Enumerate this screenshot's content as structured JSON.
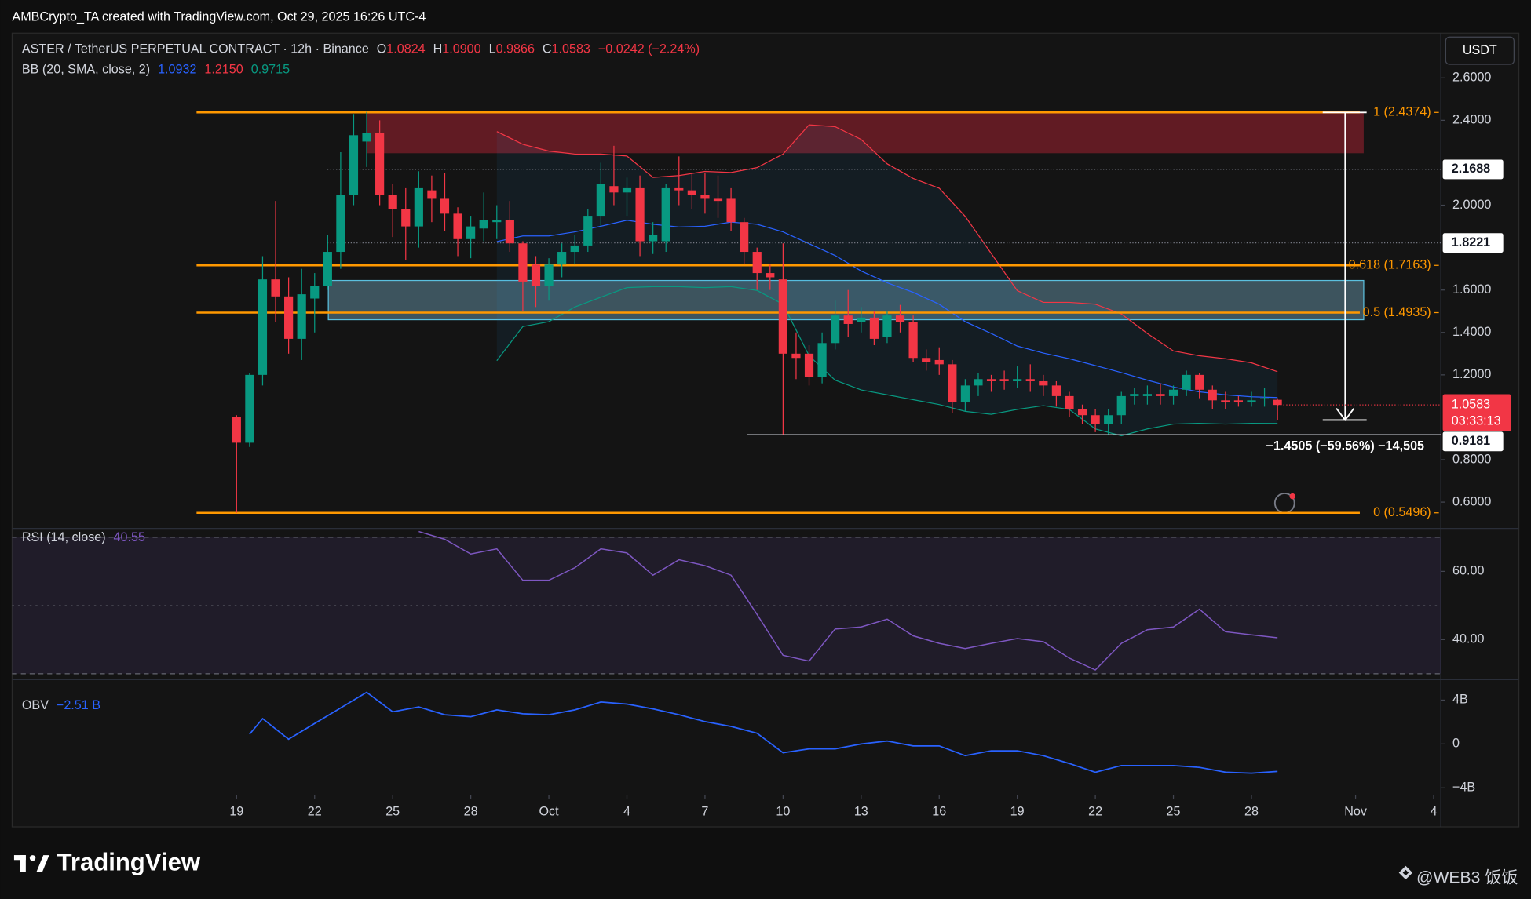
{
  "header": {
    "credit": "AMBCrypto_TA created with TradingView.com, Oct 29, 2025 16:26 UTC-4"
  },
  "currency": "USDT",
  "chart_data": [
    {
      "type": "candlestick",
      "title": "ASTER / TetherUS PERPETUAL CONTRACT · 12h · Binance",
      "ohlc_legend": [
        {
          "label": "O",
          "value": "1.0824"
        },
        {
          "label": "H",
          "value": "1.0900"
        },
        {
          "label": "L",
          "value": "0.9866"
        },
        {
          "label": "C",
          "value": "1.0583"
        }
      ],
      "change": "−0.0242 (−2.24%)",
      "up_color": "#089981",
      "down_color": "#f23645",
      "open": [
        1.0,
        0.88,
        1.2,
        1.65,
        1.57,
        1.37,
        1.56,
        1.62,
        1.78,
        2.05,
        2.3,
        2.34,
        2.05,
        1.98,
        1.9,
        2.07,
        2.03,
        1.96,
        1.84,
        1.89,
        1.92,
        1.93,
        1.82,
        1.72,
        1.62,
        1.72,
        1.78,
        1.81,
        1.95,
        2.09,
        2.06,
        2.08,
        1.83,
        1.83,
        2.08,
        2.07,
        2.05,
        2.03,
        2.03,
        1.92,
        1.78,
        1.68,
        1.65,
        1.3,
        1.3,
        1.19,
        1.35,
        1.48,
        1.45,
        1.47,
        1.38,
        1.48,
        1.45,
        1.28,
        1.27,
        1.25,
        1.07,
        1.15,
        1.18,
        1.18,
        1.17,
        1.18,
        1.17,
        1.15,
        1.1,
        1.04,
        1.01,
        0.97,
        1.01,
        1.1,
        1.1,
        1.11,
        1.1,
        1.13,
        1.2,
        1.13,
        1.08,
        1.08,
        1.07,
        1.09,
        1.0824
      ],
      "high": [
        1.01,
        1.21,
        1.76,
        2.02,
        1.66,
        1.7,
        1.68,
        1.86,
        2.25,
        2.43,
        2.44,
        2.4,
        2.1,
        2.08,
        2.16,
        2.14,
        2.15,
        1.99,
        1.95,
        2.06,
        2.0,
        2.02,
        1.83,
        1.76,
        1.75,
        1.82,
        1.86,
        1.98,
        2.2,
        2.28,
        2.13,
        2.14,
        1.92,
        2.1,
        2.23,
        2.15,
        2.15,
        2.14,
        2.08,
        1.94,
        1.8,
        1.72,
        1.82,
        1.4,
        1.34,
        1.4,
        1.55,
        1.6,
        1.52,
        1.5,
        1.5,
        1.53,
        1.48,
        1.32,
        1.33,
        1.27,
        1.18,
        1.21,
        1.2,
        1.22,
        1.24,
        1.25,
        1.2,
        1.17,
        1.12,
        1.06,
        1.04,
        1.04,
        1.12,
        1.14,
        1.15,
        1.16,
        1.15,
        1.22,
        1.21,
        1.15,
        1.12,
        1.1,
        1.12,
        1.14,
        1.09
      ],
      "low": [
        0.55,
        0.86,
        1.15,
        1.45,
        1.3,
        1.27,
        1.4,
        1.6,
        1.7,
        2.0,
        2.18,
        2.0,
        1.85,
        1.74,
        1.8,
        1.92,
        1.88,
        1.76,
        1.75,
        1.83,
        1.84,
        1.78,
        1.5,
        1.52,
        1.55,
        1.66,
        1.72,
        1.78,
        1.9,
        2.0,
        1.95,
        1.76,
        1.77,
        1.78,
        2.0,
        1.98,
        1.96,
        1.94,
        1.88,
        1.72,
        1.6,
        1.6,
        0.92,
        1.18,
        1.15,
        1.16,
        1.32,
        1.38,
        1.4,
        1.34,
        1.35,
        1.4,
        1.26,
        1.22,
        1.2,
        1.02,
        1.03,
        1.1,
        1.12,
        1.13,
        1.14,
        1.12,
        1.1,
        1.05,
        1.0,
        0.97,
        0.93,
        0.92,
        0.97,
        1.06,
        1.06,
        1.06,
        1.06,
        1.1,
        1.09,
        1.04,
        1.04,
        1.05,
        1.05,
        1.05,
        0.9866
      ],
      "close": [
        0.88,
        1.2,
        1.65,
        1.57,
        1.37,
        1.58,
        1.62,
        1.78,
        2.05,
        2.33,
        2.34,
        2.05,
        1.98,
        1.9,
        2.08,
        2.03,
        1.96,
        1.84,
        1.9,
        1.93,
        1.93,
        1.82,
        1.64,
        1.62,
        1.72,
        1.78,
        1.81,
        1.95,
        2.1,
        2.06,
        2.08,
        1.83,
        1.86,
        2.08,
        2.07,
        2.05,
        2.03,
        2.02,
        1.92,
        1.78,
        1.68,
        1.66,
        1.3,
        1.28,
        1.19,
        1.35,
        1.48,
        1.44,
        1.47,
        1.37,
        1.48,
        1.45,
        1.28,
        1.26,
        1.25,
        1.07,
        1.15,
        1.18,
        1.17,
        1.17,
        1.18,
        1.17,
        1.15,
        1.1,
        1.04,
        1.01,
        0.97,
        1.01,
        1.1,
        1.11,
        1.11,
        1.1,
        1.13,
        1.2,
        1.13,
        1.08,
        1.07,
        1.07,
        1.08,
        1.09,
        1.0583
      ],
      "xlim": [
        -17.25,
        92.55
      ],
      "xticks": [
        {
          "value": 0,
          "label": "19"
        },
        {
          "value": 6,
          "label": "22"
        },
        {
          "value": 12,
          "label": "25"
        },
        {
          "value": 18,
          "label": "28"
        },
        {
          "value": 24,
          "label": "Oct"
        },
        {
          "value": 30,
          "label": "4"
        },
        {
          "value": 36,
          "label": "7"
        },
        {
          "value": 42,
          "label": "10"
        },
        {
          "value": 48,
          "label": "13"
        },
        {
          "value": 54,
          "label": "16"
        },
        {
          "value": 60,
          "label": "19"
        },
        {
          "value": 66,
          "label": "22"
        },
        {
          "value": 72,
          "label": "25"
        },
        {
          "value": 78,
          "label": "28"
        },
        {
          "value": 86,
          "label": "Nov"
        },
        {
          "value": 92,
          "label": "4"
        }
      ],
      "ylim": [
        0.485,
        2.811
      ],
      "yticks": [
        {
          "value": 2.6,
          "label": "2.6000"
        },
        {
          "value": 2.4,
          "label": "2.4000"
        },
        {
          "value": 2.0,
          "label": "2.0000"
        },
        {
          "value": 1.6,
          "label": "1.6000"
        },
        {
          "value": 1.4,
          "label": "1.4000"
        },
        {
          "value": 1.2,
          "label": "1.2000"
        },
        {
          "value": 0.8,
          "label": "0.8000"
        },
        {
          "value": 0.6,
          "label": "0.6000"
        }
      ],
      "bands": {
        "name": "BB (20, SMA, close, 2)",
        "legend_labels": [
          "1.0932",
          "1.2150",
          "0.9715"
        ],
        "x": [
          20,
          22,
          24,
          26,
          28,
          30,
          32,
          34,
          36,
          38,
          40,
          42,
          44,
          46,
          48,
          50,
          52,
          54,
          56,
          58,
          60,
          62,
          64,
          66,
          68,
          70,
          72,
          74,
          76,
          78,
          80
        ],
        "series": [
          {
            "color": "#2962ff",
            "values": [
              1.828,
              1.855,
              1.855,
              1.874,
              1.901,
              1.929,
              1.91,
              1.897,
              1.901,
              1.92,
              1.91,
              1.874,
              1.818,
              1.763,
              1.69,
              1.634,
              1.589,
              1.533,
              1.451,
              1.395,
              1.336,
              1.303,
              1.276,
              1.244,
              1.211,
              1.175,
              1.143,
              1.12,
              1.106,
              1.097,
              1.0932
            ]
          },
          {
            "color": "#f23645",
            "values": [
              2.347,
              2.287,
              2.255,
              2.241,
              2.241,
              2.232,
              2.131,
              2.14,
              2.159,
              2.154,
              2.177,
              2.241,
              2.379,
              2.37,
              2.31,
              2.195,
              2.126,
              2.08,
              1.947,
              1.772,
              1.597,
              1.542,
              1.542,
              1.533,
              1.487,
              1.395,
              1.313,
              1.29,
              1.276,
              1.257,
              1.215
            ]
          },
          {
            "color": "#089981",
            "values": [
              1.267,
              1.428,
              1.451,
              1.52,
              1.566,
              1.611,
              1.616,
              1.616,
              1.611,
              1.616,
              1.598,
              1.533,
              1.29,
              1.175,
              1.129,
              1.106,
              1.083,
              1.06,
              1.028,
              1.014,
              1.037,
              1.055,
              1.037,
              0.945,
              0.913,
              0.945,
              0.968,
              0.972,
              0.968,
              0.972,
              0.9715
            ]
          }
        ]
      },
      "fib_color": "#ff9800",
      "fib_levels": [
        {
          "value": 2.4374,
          "label": "1 (2.4374)"
        },
        {
          "value": 1.7163,
          "label": "0.618 (1.7163)"
        },
        {
          "value": 1.4935,
          "label": "0.5 (1.4935)"
        },
        {
          "value": 0.5496,
          "label": "0 (0.5496)"
        }
      ],
      "zones": [
        {
          "top": 2.4374,
          "bottom": 2.245,
          "color": "rgba(160,32,48,0.55)"
        },
        {
          "top": 1.645,
          "bottom": 1.46,
          "color": "rgba(130,190,215,0.38)"
        }
      ],
      "price_lines": [
        2.1688,
        1.8221,
        0.9181
      ],
      "last_price": 1.0583,
      "countdown": "03:33:13",
      "measure": {
        "from": 2.4374,
        "to": 0.9869,
        "label": "−1.4505 (−59.56%) −14,505"
      }
    },
    {
      "type": "line",
      "name": "RSI (14, close)",
      "legend_value": 40.55,
      "color": "#7e57c2",
      "levels": [
        70,
        50,
        30
      ],
      "x": [
        14,
        16,
        18,
        20,
        22,
        24,
        26,
        28,
        30,
        32,
        34,
        36,
        38,
        40,
        42,
        44,
        46,
        48,
        50,
        52,
        54,
        56,
        58,
        60,
        62,
        64,
        66,
        68,
        70,
        72,
        74,
        76,
        78,
        80
      ],
      "values": [
        71.7,
        69.4,
        65.1,
        66.6,
        57.4,
        57.4,
        61.1,
        66.6,
        65.4,
        58.9,
        63.4,
        61.7,
        58.9,
        47.4,
        35.4,
        33.7,
        43.1,
        43.7,
        46.0,
        41.1,
        38.9,
        37.4,
        38.9,
        40.3,
        39.4,
        34.6,
        31.1,
        38.9,
        42.9,
        43.7,
        48.9,
        42.3,
        41.4,
        40.55
      ],
      "ylim": [
        29.7,
        72.3
      ],
      "yticks": [
        {
          "value": 60,
          "label": "60.00"
        },
        {
          "value": 40,
          "label": "40.00"
        }
      ]
    },
    {
      "type": "line",
      "name": "OBV",
      "legend_label": "−2.51 B",
      "color": "#2962ff",
      "x": [
        1,
        2,
        4,
        6,
        8,
        10,
        12,
        14,
        16,
        18,
        20,
        22,
        24,
        26,
        28,
        30,
        32,
        34,
        36,
        38,
        40,
        42,
        44,
        46,
        48,
        50,
        52,
        54,
        56,
        58,
        60,
        62,
        64,
        66,
        68,
        70,
        72,
        74,
        76,
        78,
        80
      ],
      "values": [
        0.89,
        2.31,
        0.44,
        1.87,
        3.29,
        4.71,
        2.93,
        3.38,
        2.67,
        2.49,
        3.11,
        2.76,
        2.67,
        3.11,
        3.82,
        3.64,
        3.2,
        2.67,
        2.04,
        1.6,
        0.98,
        -0.8,
        -0.44,
        -0.44,
        0,
        0.27,
        -0.18,
        -0.18,
        -1.07,
        -0.62,
        -0.62,
        -1.07,
        -1.78,
        -2.58,
        -1.96,
        -1.96,
        -1.96,
        -2.13,
        -2.58,
        -2.67,
        -2.51
      ],
      "ylim": [
        -4.622,
        5.6
      ],
      "yticks": [
        {
          "value": 4,
          "label": "4B"
        },
        0,
        {
          "value": -4,
          "label": "−4B"
        }
      ]
    }
  ],
  "footer": {
    "brand": "TradingView",
    "watermark": "@WEB3 饭饭"
  }
}
